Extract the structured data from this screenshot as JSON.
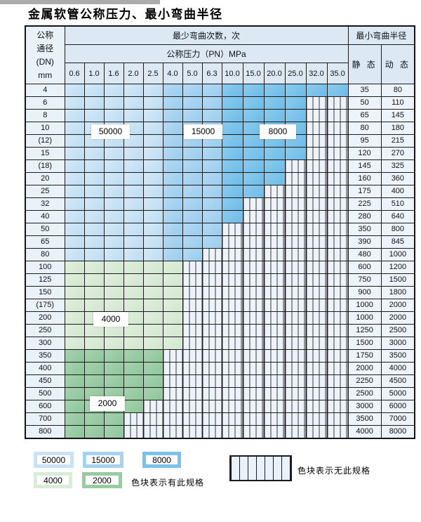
{
  "page": {
    "title": "金属软管公称压力、最小弯曲半径"
  },
  "colors": {
    "c50000": "#c9e2f5",
    "c15000": "#a6d2ef",
    "c8000": "#7bc1e9",
    "c4000": "#d9ecd7",
    "c2000": "#98cba2",
    "header_bg": "#dce9f4",
    "dn_bg": "#e9f1f9",
    "radius_bg": "#edf3fa",
    "grid": "#1b1b1b"
  },
  "table": {
    "corner_label": "公称\n通径\n(DN)\nmm",
    "cycles_header": "最少弯曲次数，次",
    "pressure_header": "公称压力（PN）MPa",
    "radius_header": "最小弯曲半径",
    "static_label": "静 态",
    "dynamic_label": "动 态",
    "pn_columns": [
      "0.6",
      "1.0",
      "1.6",
      "2.0",
      "2.5",
      "4.0",
      "5.0",
      "6.3",
      "10.0",
      "15.0",
      "20.0",
      "25.0",
      "32.0",
      "35.0"
    ],
    "zone_bands": {
      "blue": {
        "c50000": [
          0,
          4
        ],
        "c15000": [
          5,
          7
        ],
        "c8000": [
          8,
          13
        ]
      }
    },
    "rows": [
      {
        "dn": "4",
        "colored": 14,
        "zone": "blue",
        "static": "35",
        "dynamic": "80"
      },
      {
        "dn": "6",
        "colored": 12,
        "zone": "blue",
        "static": "50",
        "dynamic": "110"
      },
      {
        "dn": "8",
        "colored": 12,
        "zone": "blue",
        "static": "65",
        "dynamic": "145"
      },
      {
        "dn": "10",
        "colored": 12,
        "zone": "blue",
        "static": "80",
        "dynamic": "180"
      },
      {
        "dn": "(12)",
        "colored": 12,
        "zone": "blue",
        "static": "95",
        "dynamic": "215"
      },
      {
        "dn": "15",
        "colored": 12,
        "zone": "blue",
        "static": "120",
        "dynamic": "270"
      },
      {
        "dn": "(18)",
        "colored": 11,
        "zone": "blue",
        "static": "145",
        "dynamic": "325"
      },
      {
        "dn": "20",
        "colored": 11,
        "zone": "blue",
        "static": "160",
        "dynamic": "360"
      },
      {
        "dn": "25",
        "colored": 10,
        "zone": "blue",
        "static": "175",
        "dynamic": "400"
      },
      {
        "dn": "32",
        "colored": 9,
        "zone": "blue",
        "static": "225",
        "dynamic": "510"
      },
      {
        "dn": "40",
        "colored": 9,
        "zone": "blue",
        "static": "280",
        "dynamic": "640"
      },
      {
        "dn": "50",
        "colored": 8,
        "zone": "blue",
        "static": "350",
        "dynamic": "800"
      },
      {
        "dn": "65",
        "colored": 8,
        "zone": "blue",
        "static": "390",
        "dynamic": "845"
      },
      {
        "dn": "80",
        "colored": 7,
        "zone": "blue",
        "static": "480",
        "dynamic": "1000"
      },
      {
        "dn": "100",
        "colored": 6,
        "zone": "g4",
        "static": "600",
        "dynamic": "1200"
      },
      {
        "dn": "125",
        "colored": 6,
        "zone": "g4",
        "static": "750",
        "dynamic": "1500"
      },
      {
        "dn": "150",
        "colored": 6,
        "zone": "g4",
        "static": "900",
        "dynamic": "1800"
      },
      {
        "dn": "(175)",
        "colored": 6,
        "zone": "g4",
        "static": "1000",
        "dynamic": "2000"
      },
      {
        "dn": "200",
        "colored": 6,
        "zone": "g4",
        "static": "1000",
        "dynamic": "2000"
      },
      {
        "dn": "250",
        "colored": 6,
        "zone": "g4",
        "static": "1250",
        "dynamic": "2500"
      },
      {
        "dn": "300",
        "colored": 6,
        "zone": "g4",
        "static": "1500",
        "dynamic": "3000"
      },
      {
        "dn": "350",
        "colored": 5,
        "zone": "g2",
        "static": "1750",
        "dynamic": "3500"
      },
      {
        "dn": "400",
        "colored": 5,
        "zone": "g2",
        "static": "2000",
        "dynamic": "4000"
      },
      {
        "dn": "450",
        "colored": 5,
        "zone": "g2",
        "static": "2250",
        "dynamic": "4500"
      },
      {
        "dn": "500",
        "colored": 5,
        "zone": "g2",
        "static": "2500",
        "dynamic": "5000"
      },
      {
        "dn": "600",
        "colored": 4,
        "zone": "g2",
        "static": "3000",
        "dynamic": "6000"
      },
      {
        "dn": "700",
        "colored": 3,
        "zone": "g2",
        "static": "3500",
        "dynamic": "7000"
      },
      {
        "dn": "800",
        "colored": 3,
        "zone": "g2",
        "static": "4000",
        "dynamic": "8000"
      }
    ]
  },
  "annotations": {
    "v50000": "50000",
    "v15000": "15000",
    "v8000": "8000",
    "v4000": "4000",
    "v2000": "2000"
  },
  "legend": {
    "items": [
      {
        "label": "50000",
        "color_key": "c50000"
      },
      {
        "label": "15000",
        "color_key": "c15000"
      },
      {
        "label": "8000",
        "color_key": "c8000"
      },
      {
        "label": "4000",
        "color_key": "c4000"
      },
      {
        "label": "2000",
        "color_key": "c2000"
      }
    ],
    "has_spec_note": "色块表示有此规格",
    "no_spec_note": "色块表示无此规格"
  }
}
